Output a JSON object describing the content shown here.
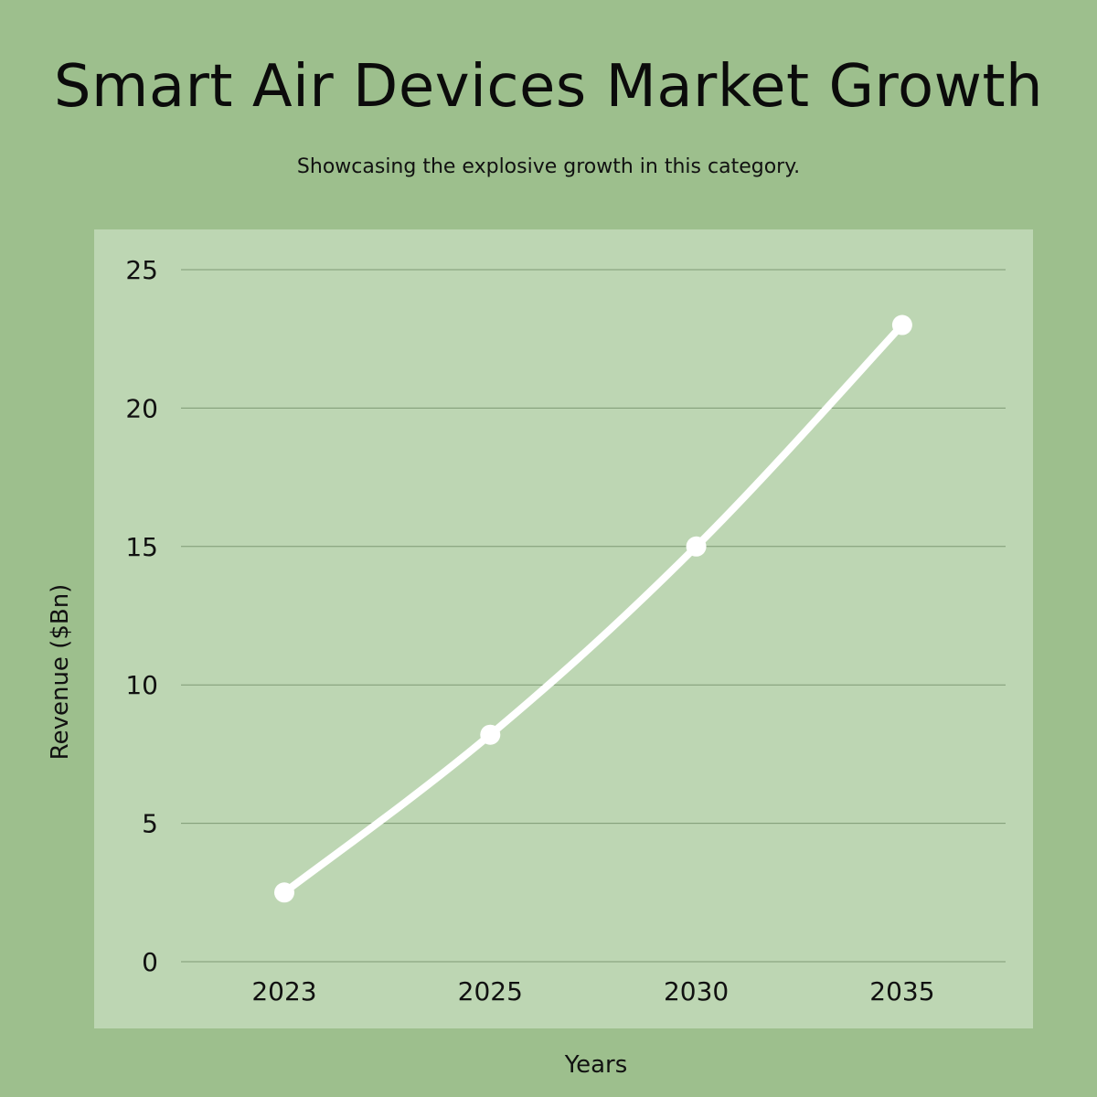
{
  "chart_data": {
    "type": "line",
    "title": "Smart Air Devices Market Growth",
    "subtitle": "Showcasing the explosive growth in this category.",
    "xlabel": "Years",
    "ylabel": "Revenue ($Bn)",
    "categories": [
      "2023",
      "2025",
      "2030",
      "2035"
    ],
    "values": [
      2.5,
      8.2,
      15,
      23
    ],
    "ylim": [
      0,
      25
    ],
    "yticks": [
      0,
      5,
      10,
      15,
      20,
      25
    ],
    "grid": true,
    "legend": "none",
    "colors": {
      "background": "#9dbf8d",
      "plot_background": "#bdd6b3",
      "line": "#ffffff",
      "grid": "#7f9a74"
    }
  }
}
